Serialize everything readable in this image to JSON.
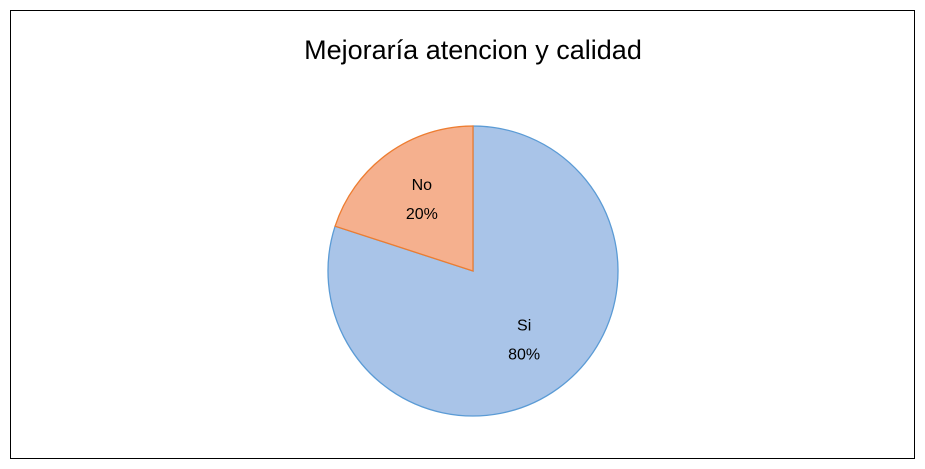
{
  "chart_data": {
    "type": "pie",
    "title": "Mejoraría atencion y calidad",
    "categories": [
      "Si",
      "No"
    ],
    "values": [
      80,
      20
    ],
    "value_labels": [
      "80%",
      "20%"
    ],
    "colors": [
      "#a9c4e8",
      "#f5b08e"
    ],
    "edge_colors": [
      "#5b9bd5",
      "#ed7d31"
    ]
  }
}
